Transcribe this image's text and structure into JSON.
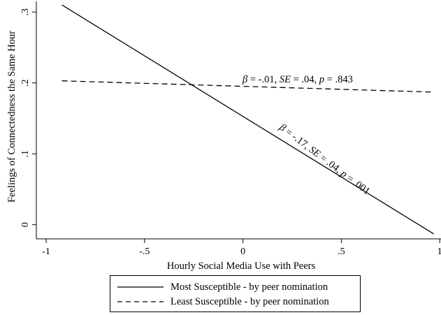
{
  "chart_data": {
    "type": "line",
    "title": "",
    "xlabel": "Hourly Social Media Use with Peers",
    "ylabel": "Feelings of Connectedness the Same Hour",
    "xlim": [
      -1.05,
      1.01
    ],
    "ylim": [
      -0.02,
      0.315
    ],
    "x_ticks": [
      -1,
      -0.5,
      0,
      0.5,
      1
    ],
    "x_tick_labels": [
      "-1",
      "-.5",
      "0",
      ".5",
      "1"
    ],
    "y_ticks": [
      0,
      0.1,
      0.2,
      0.3
    ],
    "y_tick_labels": [
      "0",
      ".1",
      ".2",
      ".3"
    ],
    "grid": false,
    "legend_position": "bottom",
    "series": [
      {
        "name": "Most Susceptible - by peer nomination",
        "style": "solid",
        "color": "#000000",
        "x": [
          -0.92,
          0.97
        ],
        "y": [
          0.31,
          -0.013
        ]
      },
      {
        "name": "Least Susceptible - by peer nomination",
        "style": "dashed",
        "color": "#000000",
        "x": [
          -0.92,
          0.97
        ],
        "y": [
          0.203,
          0.187
        ]
      }
    ],
    "annotations": [
      {
        "id": "least",
        "parts": [
          {
            "text": "β",
            "italic": true
          },
          {
            "text": " = -.01, ",
            "italic": false
          },
          {
            "text": "SE",
            "italic": true
          },
          {
            "text": " = .04, ",
            "italic": false
          },
          {
            "text": "p",
            "italic": true
          },
          {
            "text": " = .843",
            "italic": false
          }
        ]
      },
      {
        "id": "most",
        "parts": [
          {
            "text": "β",
            "italic": true
          },
          {
            "text": " = -.17, ",
            "italic": false
          },
          {
            "text": "SE",
            "italic": true
          },
          {
            "text": " = .04, ",
            "italic": false
          },
          {
            "text": "p",
            "italic": true
          },
          {
            "text": " = .001",
            "italic": false
          }
        ]
      }
    ]
  },
  "legend": {
    "items": [
      {
        "label": "Most Susceptible - by peer nomination",
        "style": "solid"
      },
      {
        "label": "Least Susceptible - by peer nomination",
        "style": "dashed"
      }
    ]
  }
}
